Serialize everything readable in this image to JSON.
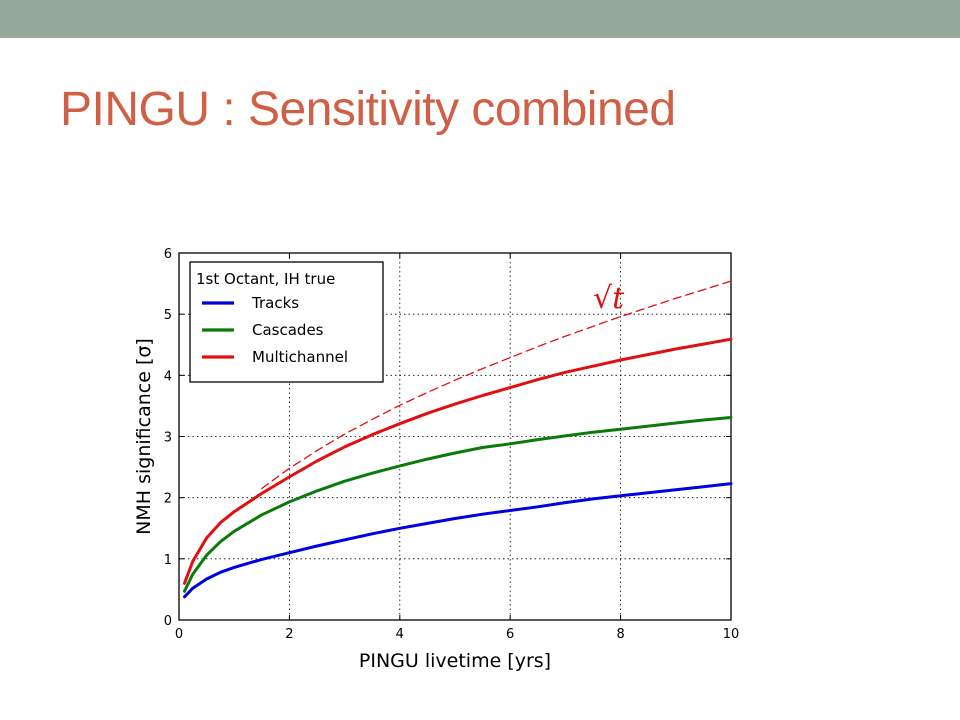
{
  "slide": {
    "title": "PINGU : Sensitivity combined",
    "title_color": "#cf5f46",
    "top_bar_color": "#96a89a"
  },
  "chart_data": {
    "type": "line",
    "xlabel": "PINGU livetime [yrs]",
    "ylabel": "NMH significance [σ]",
    "xlim": [
      0,
      10
    ],
    "ylim": [
      0,
      6
    ],
    "xticks": [
      0,
      2,
      4,
      6,
      8,
      10
    ],
    "yticks": [
      0,
      1,
      2,
      3,
      4,
      5,
      6
    ],
    "grid": true,
    "grid_style": "dotted",
    "legend": {
      "title": "1st Octant, IH true",
      "placement": "top-left"
    },
    "x": [
      0.1,
      0.25,
      0.5,
      0.75,
      1,
      1.5,
      2,
      2.5,
      3,
      3.5,
      4,
      4.5,
      5,
      5.5,
      6,
      6.5,
      7,
      7.5,
      8,
      8.5,
      9,
      9.5,
      10
    ],
    "series": [
      {
        "name": "Tracks",
        "color": "#0000e0",
        "style": "solid",
        "values": [
          0.38,
          0.52,
          0.67,
          0.78,
          0.86,
          0.99,
          1.1,
          1.21,
          1.31,
          1.41,
          1.5,
          1.58,
          1.66,
          1.73,
          1.79,
          1.85,
          1.92,
          1.98,
          2.03,
          2.08,
          2.13,
          2.18,
          2.23
        ]
      },
      {
        "name": "Cascades",
        "color": "#0a7a0a",
        "style": "solid",
        "values": [
          0.47,
          0.75,
          1.06,
          1.28,
          1.45,
          1.72,
          1.93,
          2.11,
          2.27,
          2.4,
          2.52,
          2.63,
          2.73,
          2.82,
          2.88,
          2.95,
          3.01,
          3.07,
          3.12,
          3.17,
          3.22,
          3.27,
          3.31
        ]
      },
      {
        "name": "Multichannel",
        "color": "#e01010",
        "style": "solid",
        "values": [
          0.6,
          0.96,
          1.34,
          1.59,
          1.77,
          2.07,
          2.34,
          2.6,
          2.83,
          3.03,
          3.21,
          3.38,
          3.53,
          3.67,
          3.8,
          3.93,
          4.05,
          4.15,
          4.25,
          4.34,
          4.43,
          4.51,
          4.59
        ]
      },
      {
        "name": "",
        "color": "#e01010",
        "style": "dashed",
        "x": [
          1.5,
          2,
          2.5,
          3,
          3.5,
          4,
          4.5,
          5,
          5.5,
          6,
          6.5,
          7,
          7.5,
          8,
          8.5,
          9,
          9.5,
          10
        ],
        "values": [
          2.15,
          2.48,
          2.77,
          3.04,
          3.28,
          3.51,
          3.72,
          3.92,
          4.11,
          4.29,
          4.47,
          4.64,
          4.8,
          4.96,
          5.11,
          5.26,
          5.4,
          5.54
        ]
      }
    ],
    "annotations": [
      {
        "text": "√t",
        "x": 7.5,
        "y": 5.1,
        "color": "#e01010"
      }
    ]
  }
}
